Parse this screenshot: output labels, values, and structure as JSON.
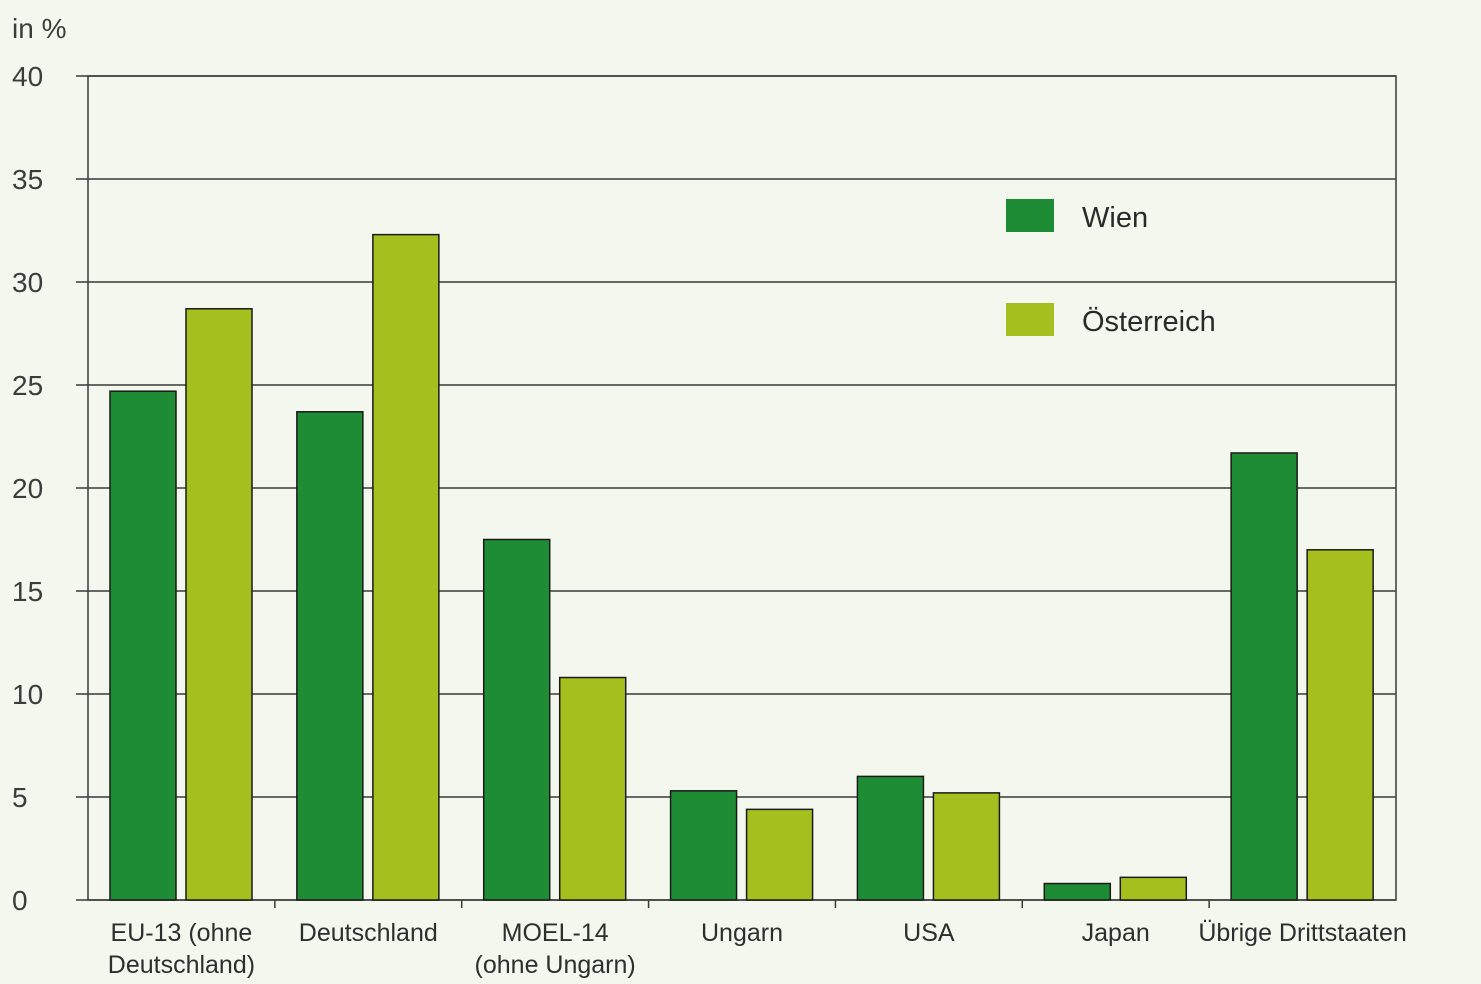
{
  "chart_data": {
    "type": "bar",
    "ylabel": "in %",
    "ylim": [
      0,
      40
    ],
    "yticks": [
      0,
      5,
      10,
      15,
      20,
      25,
      30,
      35,
      40
    ],
    "grid": true,
    "legend_position": "top-right",
    "categories": [
      [
        "EU-13 (ohne",
        "Deutschland)"
      ],
      [
        "Deutschland"
      ],
      [
        "MOEL-14",
        "(ohne Ungarn)"
      ],
      [
        "Ungarn"
      ],
      [
        "USA"
      ],
      [
        "Japan"
      ],
      [
        "Übrige Drittstaaten"
      ]
    ],
    "series": [
      {
        "name": "Wien",
        "color": "#1e8c34",
        "values": [
          24.7,
          23.7,
          17.5,
          5.3,
          6.0,
          0.8,
          21.7
        ]
      },
      {
        "name": "Österreich",
        "color": "#a5bf1e",
        "values": [
          28.7,
          32.3,
          10.8,
          4.4,
          5.2,
          1.1,
          17.0
        ]
      }
    ]
  }
}
